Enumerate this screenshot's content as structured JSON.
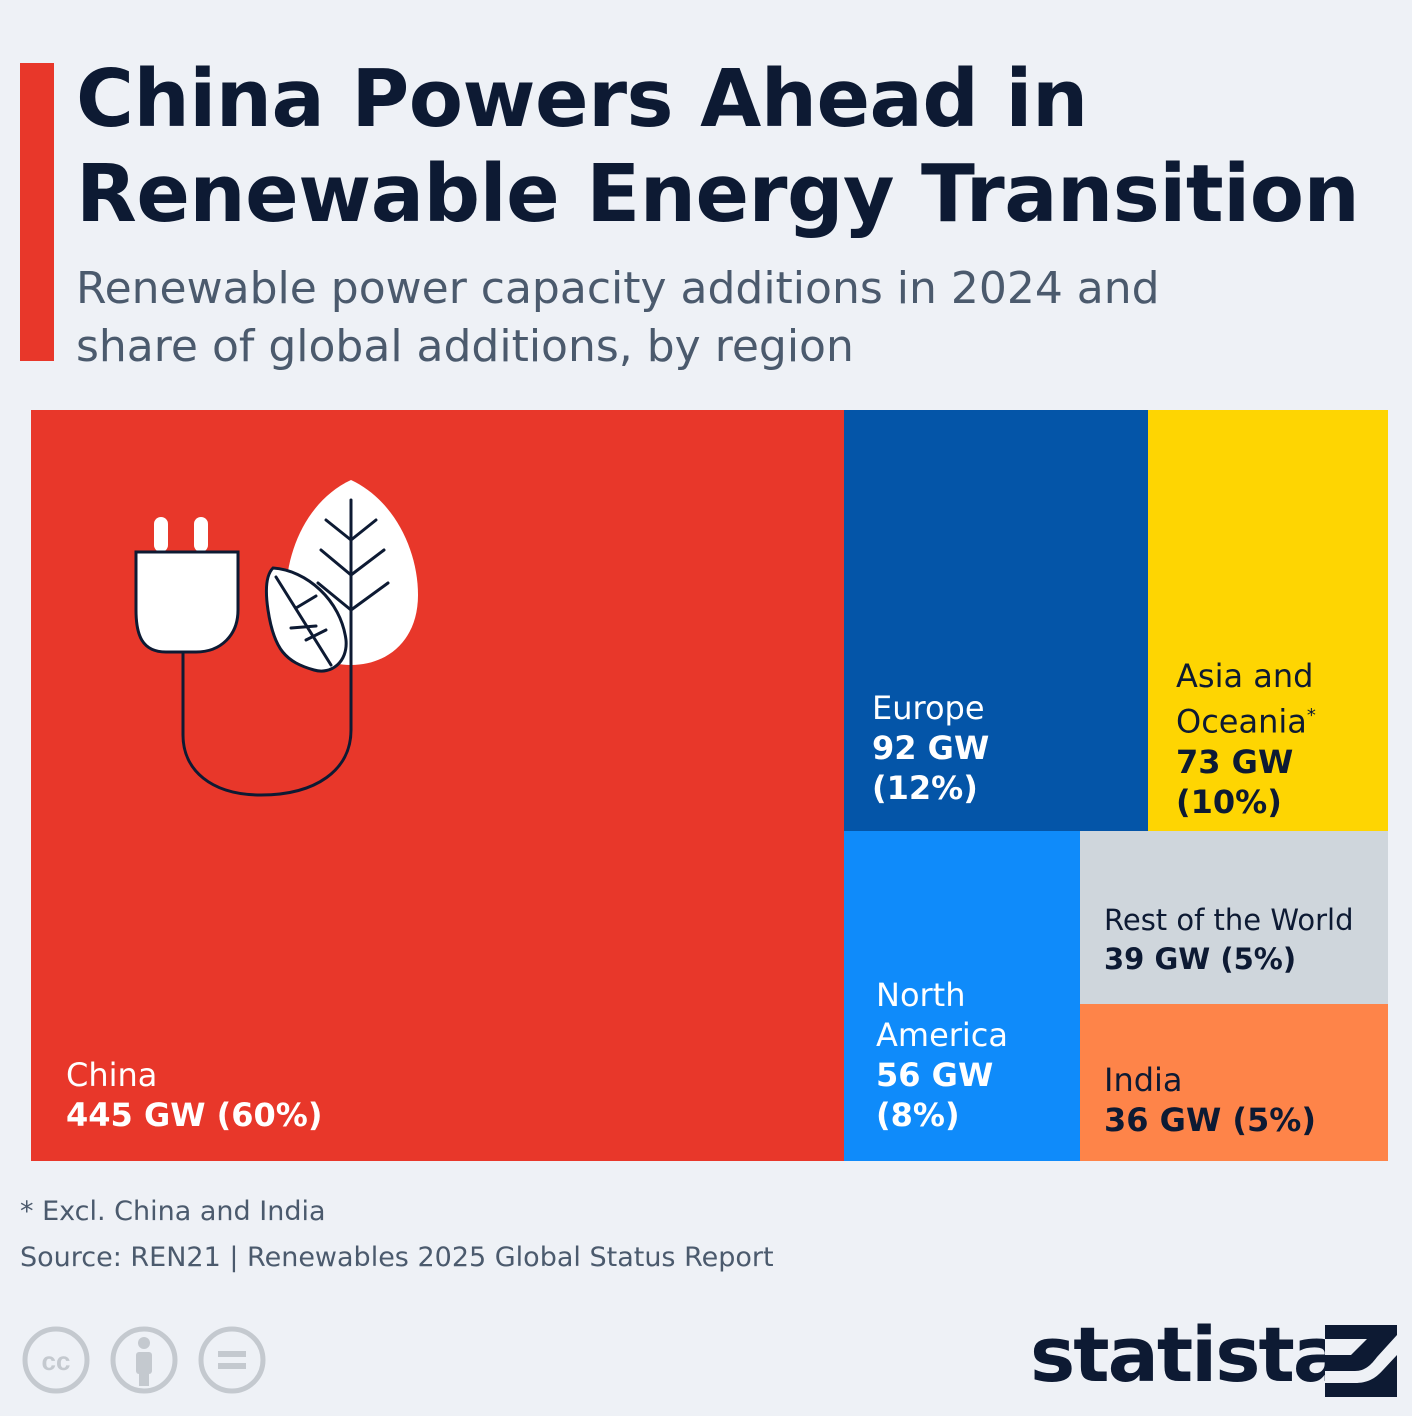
{
  "header": {
    "title": "China Powers Ahead in Renewable Energy Transition",
    "subtitle": "Renewable power capacity additions in 2024 and share of global additions, by region"
  },
  "chart_data": {
    "type": "treemap",
    "unit": "GW",
    "items": [
      {
        "region": "China",
        "value": 445,
        "share": 60,
        "value_label": "445 GW (60%)",
        "color": "#e8372a"
      },
      {
        "region": "Europe",
        "value": 92,
        "share": 12,
        "value_label": "92 GW",
        "share_label": "(12%)",
        "color": "#0455a8"
      },
      {
        "region": "Asia and Oceania",
        "footnote_mark": "*",
        "value": 73,
        "share": 10,
        "value_label": "73 GW",
        "share_label": "(10%)",
        "color": "#fed502"
      },
      {
        "region": "North America",
        "value": 56,
        "share": 8,
        "value_label": "56 GW",
        "share_label": "(8%)",
        "color": "#0f8bfa"
      },
      {
        "region": "Rest of the World",
        "value": 39,
        "share": 5,
        "value_label": "39 GW (5%)",
        "color": "#cfd6dc"
      },
      {
        "region": "India",
        "value": 36,
        "share": 5,
        "value_label": "36 GW (5%)",
        "color": "#fe8449"
      }
    ]
  },
  "labels": {
    "china_name": "China",
    "europe_name": "Europe",
    "asia_line1": "Asia and",
    "asia_line2": "Oceania",
    "asia_star": "*",
    "na_line1": "North",
    "na_line2": "America",
    "row_name": "Rest of the World",
    "india_name": "India"
  },
  "footer": {
    "footnote": "* Excl. China and India",
    "source": "Source: REN21 | Renewables 2025 Global Status Report",
    "cc_text": "cc",
    "logo": "statista"
  },
  "colors": {
    "accent": "#e8372a",
    "title": "#0d1a33",
    "subtitle": "#4b5a6d",
    "background": "#eef1f6"
  }
}
